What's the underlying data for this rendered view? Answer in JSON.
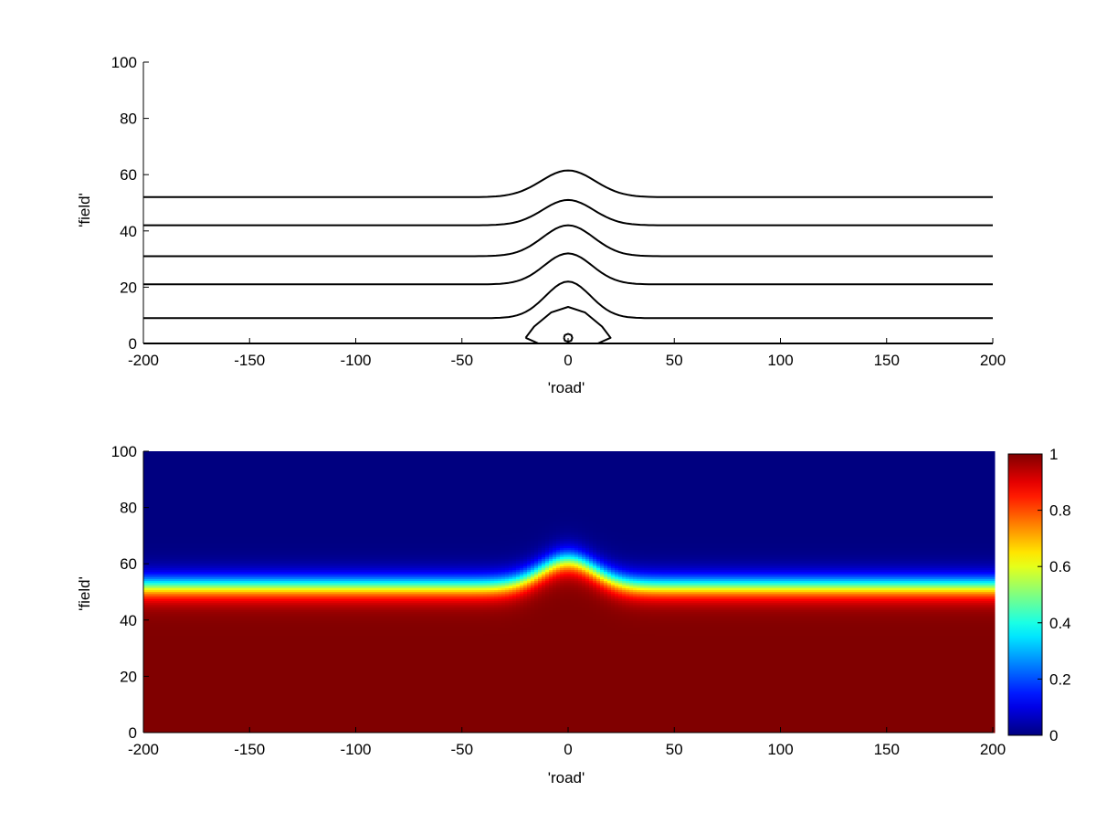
{
  "chart_data": [
    {
      "type": "line",
      "subtype": "contour",
      "title": "",
      "xlabel": "'road'",
      "ylabel": "'field'",
      "xlim": [
        -200,
        200
      ],
      "ylim": [
        0,
        100
      ],
      "xticks": [
        -200,
        -150,
        -100,
        -50,
        0,
        50,
        100,
        150,
        200
      ],
      "yticks": [
        0,
        20,
        40,
        60,
        80,
        100
      ],
      "grid": false,
      "line_color": "#000000",
      "series": [
        {
          "kind": "band",
          "edge": 0,
          "peak": 0,
          "width": 14
        },
        {
          "kind": "band",
          "edge": 9,
          "peak": 22,
          "width": 15
        },
        {
          "kind": "band",
          "edge": 21,
          "peak": 32,
          "width": 16
        },
        {
          "kind": "band",
          "edge": 31,
          "peak": 42,
          "width": 17
        },
        {
          "kind": "band",
          "edge": 42,
          "peak": 51,
          "width": 17
        },
        {
          "kind": "band",
          "edge": 52,
          "peak": 61.5,
          "width": 18
        },
        {
          "kind": "loop",
          "x": [
            -20,
            -16,
            -8,
            0,
            8,
            16,
            20,
            14,
            0,
            -14,
            -20
          ],
          "y": [
            2,
            6,
            11,
            13,
            11,
            6,
            2,
            0,
            0,
            0,
            2
          ]
        },
        {
          "kind": "loop",
          "x": [
            -2,
            -1.5,
            0,
            1.5,
            2,
            1.5,
            0,
            -1.5,
            -2
          ],
          "y": [
            2,
            3,
            3.4,
            3,
            2,
            1,
            0.6,
            1,
            2
          ]
        }
      ]
    },
    {
      "type": "heatmap",
      "title": "",
      "xlabel": "'road'",
      "ylabel": "'field'",
      "xlim": [
        -200,
        200
      ],
      "ylim": [
        0,
        100
      ],
      "xticks": [
        -200,
        -150,
        -100,
        -50,
        0,
        50,
        100,
        150,
        200
      ],
      "yticks": [
        0,
        20,
        40,
        60,
        80,
        100
      ],
      "colormap": "jet",
      "clim": [
        0,
        1
      ],
      "colorbar_ticks": [
        0,
        0.2,
        0.4,
        0.6,
        0.8,
        1
      ],
      "front": {
        "edge": 52,
        "peak": 61,
        "width": 18,
        "transition": 2.5
      }
    }
  ]
}
